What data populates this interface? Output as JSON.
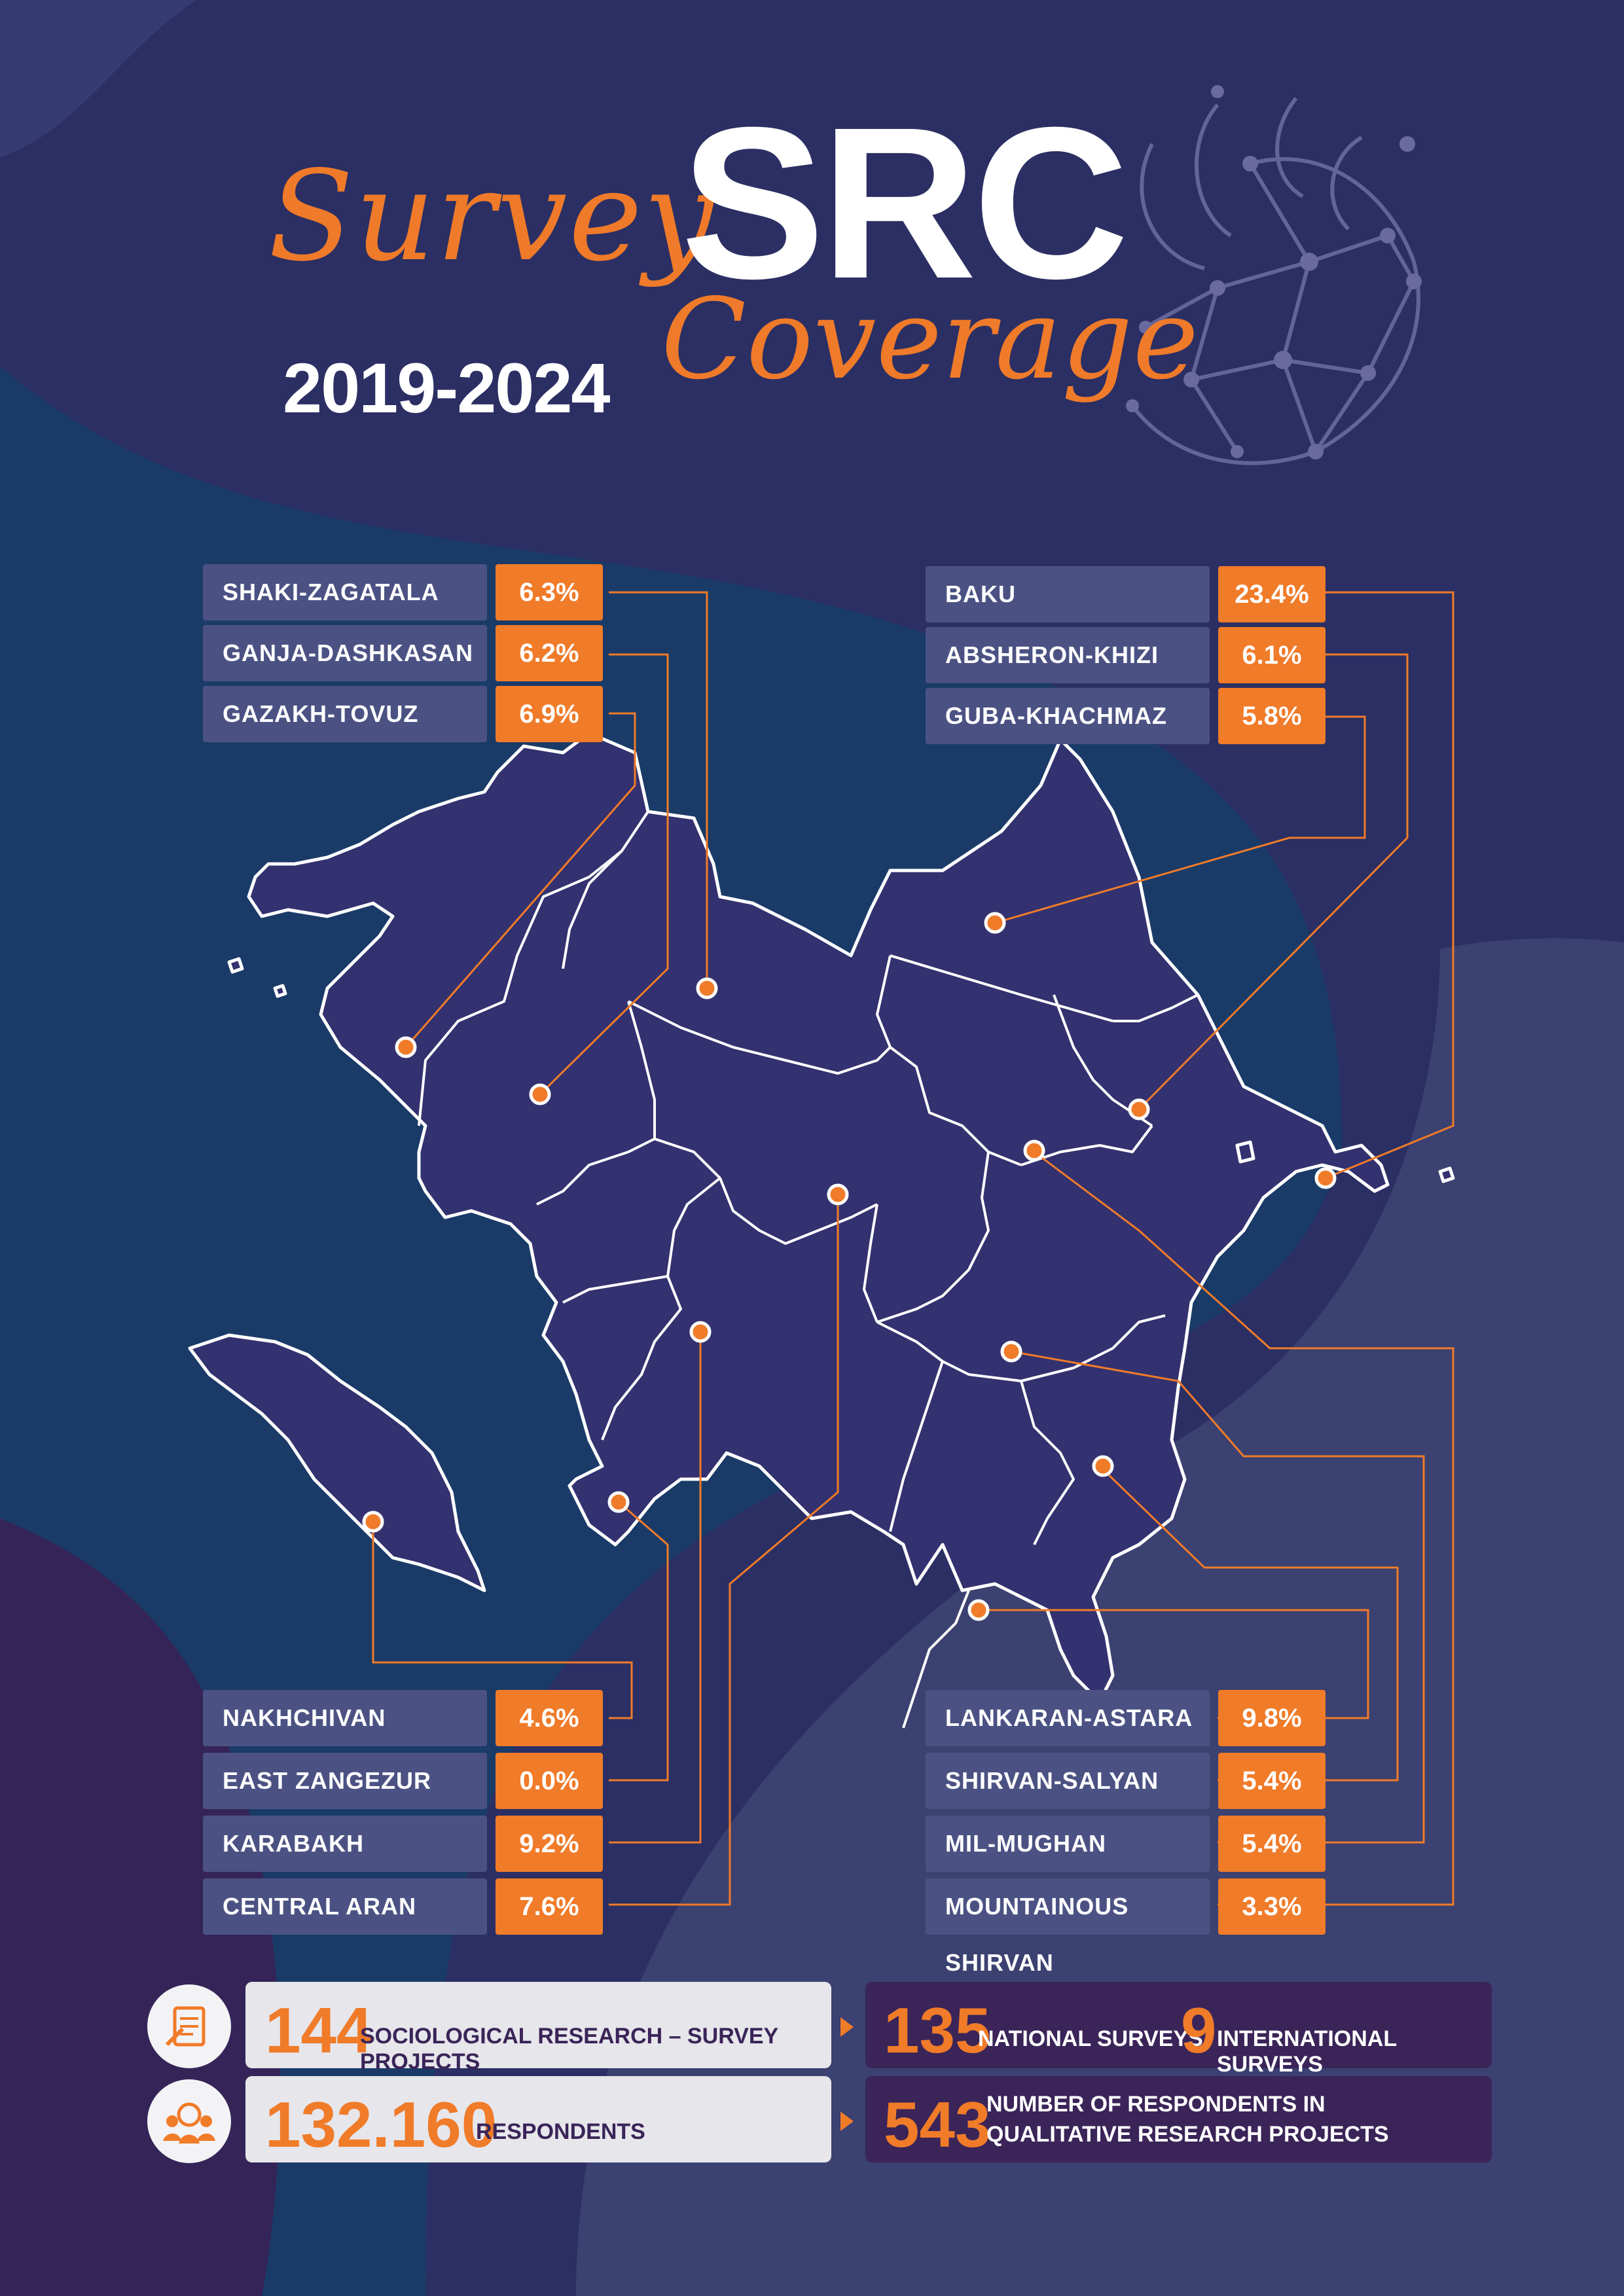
{
  "header": {
    "survey": "Survey",
    "src": "SRC",
    "coverage": "Coverage",
    "years": "2019-2024"
  },
  "regions_left_top": [
    {
      "name": "SHAKI-ZAGATALA",
      "pct": "6.3%"
    },
    {
      "name": "GANJA-DASHKASAN",
      "pct": "6.2%"
    },
    {
      "name": "GAZAKH-TOVUZ",
      "pct": "6.9%"
    }
  ],
  "regions_right_top": [
    {
      "name": "BAKU",
      "pct": "23.4%"
    },
    {
      "name": "ABSHERON-KHIZI",
      "pct": "6.1%"
    },
    {
      "name": "GUBA-KHACHMAZ",
      "pct": "5.8%"
    }
  ],
  "regions_left_bottom": [
    {
      "name": "NAKHCHIVAN",
      "pct": "4.6%"
    },
    {
      "name": "EAST ZANGEZUR",
      "pct": "0.0%"
    },
    {
      "name": "KARABAKH",
      "pct": "9.2%"
    },
    {
      "name": "CENTRAL ARAN",
      "pct": "7.6%"
    }
  ],
  "regions_right_bottom": [
    {
      "name": "LANKARAN-ASTARA",
      "pct": "9.8%"
    },
    {
      "name": "SHIRVAN-SALYAN",
      "pct": "5.4%"
    },
    {
      "name": "MIL-MUGHAN",
      "pct": "5.4%"
    },
    {
      "name": "MOUNTAINOUS SHIRVAN",
      "pct": "3.3%"
    }
  ],
  "stats": {
    "projects_num": "144",
    "projects_label": "SOCIOLOGICAL RESEARCH – SURVEY PROJECTS",
    "national_num": "135",
    "national_label": "NATIONAL SURVEYS",
    "international_num": "9",
    "international_label": "INTERNATIONAL SURVEYS",
    "respondents_num": "132.160",
    "respondents_label": "RESPONDENTS",
    "qual_num": "543",
    "qual_label_line1": "NUMBER OF RESPONDENTS IN",
    "qual_label_line2": "QUALITATIVE RESEARCH PROJECTS"
  },
  "icons": {
    "projects": "survey-document-icon",
    "respondents": "people-search-icon",
    "arrow": "arrow-right-icon",
    "logo": "src-network-logo"
  },
  "colors": {
    "bg_navy": "#2b2f63",
    "bg_teal": "#1a3b68",
    "bg_slate": "#3b4170",
    "bg_purple": "#352457",
    "map_fill": "#33316f",
    "accent_orange": "#f07b29",
    "label_box": "#4b5283"
  }
}
